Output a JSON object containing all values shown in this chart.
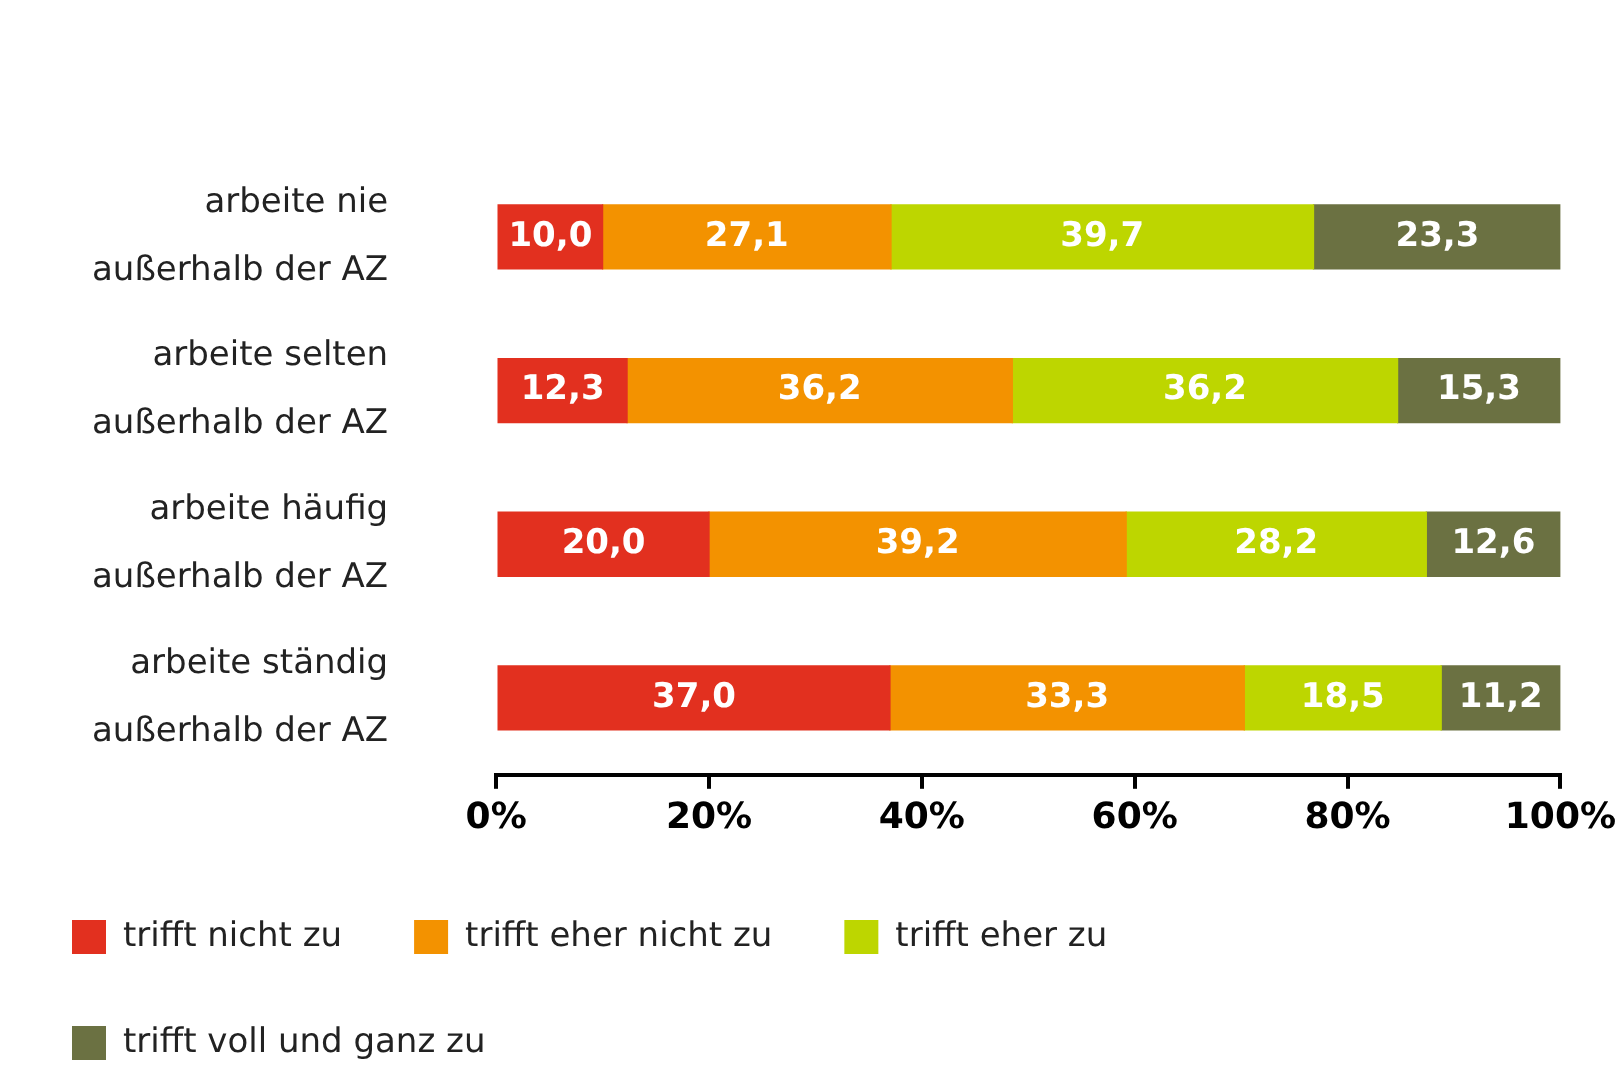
{
  "chart_data": {
    "type": "bar",
    "orientation": "horizontal",
    "stacked": true,
    "grid": false,
    "legend": "bottom left",
    "categories": [
      "arbeite nie\naußerhalb der AZ",
      "arbeite selten\naußerhalb der AZ",
      "arbeite häufig\naußerhalb der AZ",
      "arbeite ständig\naußerhalb der AZ"
    ],
    "xlim": [
      0,
      100
    ],
    "xticks": [
      {
        "value": 0,
        "label": "0%"
      },
      {
        "value": 20,
        "label": "20%"
      },
      {
        "value": 40,
        "label": "40%"
      },
      {
        "value": 60,
        "label": "60%"
      },
      {
        "value": 80,
        "label": "80%"
      },
      {
        "value": 100,
        "label": "100%"
      }
    ],
    "series": [
      {
        "name": "trifft nicht zu",
        "color": "#e2301f",
        "values": [
          10.0,
          12.3,
          20.0,
          37.0
        ],
        "value_labels": [
          "10,0",
          "12,3",
          "20,0",
          "37,0"
        ]
      },
      {
        "name": "trifft eher nicht zu",
        "color": "#f39200",
        "values": [
          27.1,
          36.2,
          39.2,
          33.3
        ],
        "value_labels": [
          "27,1",
          "36,2",
          "39,2",
          "33,3"
        ]
      },
      {
        "name": "trifft eher zu",
        "color": "#bdd600",
        "values": [
          39.7,
          36.2,
          28.2,
          18.5
        ],
        "value_labels": [
          "39,7",
          "36,2",
          "28,2",
          "18,5"
        ]
      },
      {
        "name": "trifft voll und ganz zu",
        "color": "#6b7142",
        "values": [
          23.3,
          15.3,
          12.6,
          11.2
        ],
        "value_labels": [
          "23,3",
          "15,3",
          "12,6",
          "11,2"
        ]
      }
    ]
  }
}
